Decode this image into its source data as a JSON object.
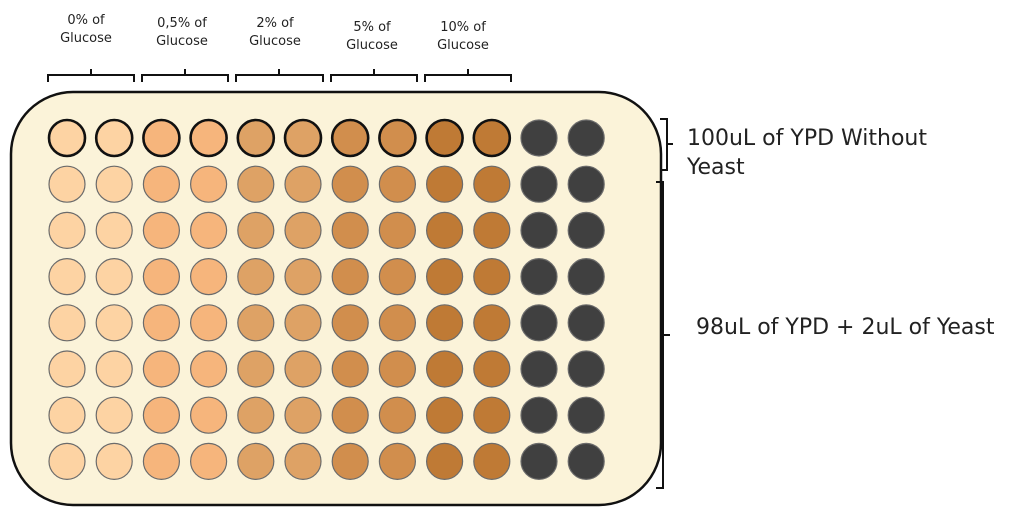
{
  "groups": [
    {
      "line1": "0% of",
      "line2": "Glucose"
    },
    {
      "line1": "0,5% of",
      "line2": "Glucose"
    },
    {
      "line1": "2% of",
      "line2": "Glucose"
    },
    {
      "line1": "5% of",
      "line2": "Glucose"
    },
    {
      "line1": "10% of",
      "line2": "Glucose"
    }
  ],
  "side_labels": {
    "top_line1": "100uL of YPD Without",
    "top_line2": "Yeast",
    "bottom": "98uL of YPD + 2uL of Yeast"
  },
  "plate": {
    "rows": 8,
    "columns": 12,
    "background_color": "#fbf3d9",
    "border_color": "#111111",
    "empty_well_color": "#404040",
    "column_colors": [
      "#fdd3a3",
      "#fdd3a3",
      "#f6b57c",
      "#f6b57c",
      "#dea265",
      "#dea265",
      "#d18e4d",
      "#d18e4d",
      "#bf7a35",
      "#bf7a35",
      "#404040",
      "#404040"
    ]
  }
}
